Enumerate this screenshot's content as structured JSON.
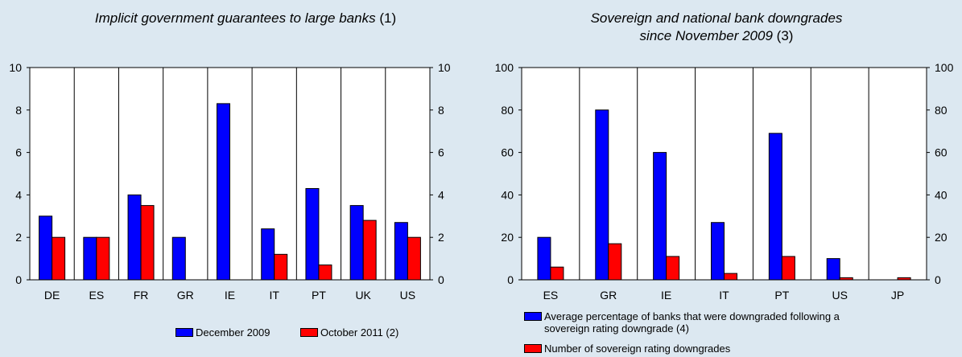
{
  "colors": {
    "background": "#dce8f1",
    "plot_bg": "#ffffff",
    "series_blue": "#0000ff",
    "series_red": "#ff0000"
  },
  "chart_data": [
    {
      "type": "bar",
      "title_italic": "Implicit government guarantees to large banks",
      "title_suffix": "(1)",
      "categories": [
        "DE",
        "ES",
        "FR",
        "GR",
        "IE",
        "IT",
        "PT",
        "UK",
        "US"
      ],
      "series": [
        {
          "name": "December 2009",
          "color": "#0000ff",
          "values": [
            3.0,
            2.0,
            4.0,
            2.0,
            8.3,
            2.4,
            4.3,
            3.5,
            2.7
          ]
        },
        {
          "name": "October 2011 (2)",
          "color": "#ff0000",
          "values": [
            2.0,
            2.0,
            3.5,
            null,
            null,
            1.2,
            0.7,
            2.8,
            2.0
          ]
        }
      ],
      "ylim": [
        0,
        10
      ],
      "yticks": [
        "0",
        "2",
        "4",
        "6",
        "8",
        "10"
      ],
      "grid": "vertical",
      "legend_position": "bottom"
    },
    {
      "type": "bar",
      "title_italic_line1": "Sovereign and national bank downgrades",
      "title_italic_line2": "since November 2009",
      "title_suffix": "(3)",
      "categories": [
        "ES",
        "GR",
        "IE",
        "IT",
        "PT",
        "US",
        "JP"
      ],
      "series": [
        {
          "name": "Average percentage of banks that were downgraded following a sovereign rating downgrade (4)",
          "name_line1": "Average percentage of banks that were downgraded following a",
          "name_line2": "sovereign rating downgrade (4)",
          "color": "#0000ff",
          "values": [
            20,
            80,
            60,
            27,
            69,
            10,
            null
          ]
        },
        {
          "name": "Number of sovereign rating downgrades",
          "color": "#ff0000",
          "values": [
            6,
            17,
            11,
            3,
            11,
            1,
            1
          ]
        }
      ],
      "ylim": [
        0,
        100
      ],
      "yticks": [
        "0",
        "20",
        "40",
        "60",
        "80",
        "100"
      ],
      "grid": "vertical",
      "legend_position": "bottom"
    }
  ]
}
